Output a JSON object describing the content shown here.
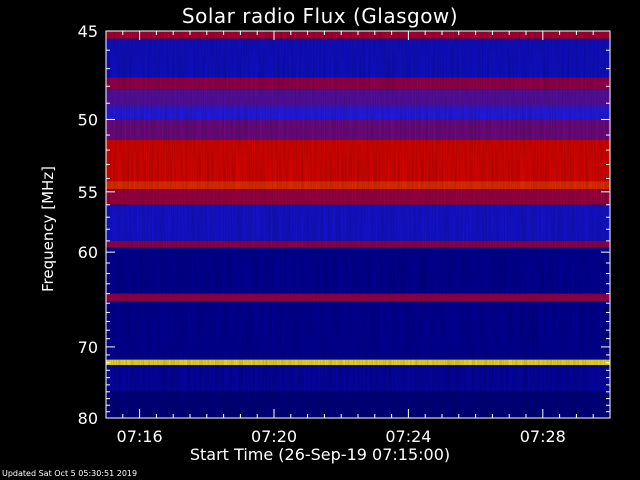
{
  "chart_data": {
    "type": "heatmap",
    "title": "Solar radio Flux (Glasgow)",
    "xlabel": "Start Time (26-Sep-19 07:15:00)",
    "ylabel": "Frequency [MHz]",
    "x_tick_labels": [
      "07:16",
      "07:20",
      "07:24",
      "07:28"
    ],
    "x_tick_minutes": [
      1,
      5,
      9,
      13
    ],
    "xlim_minutes": [
      0,
      15
    ],
    "y_ticks": [
      45,
      50,
      55,
      60,
      70,
      80
    ],
    "ylim": [
      45,
      80
    ],
    "y_scale": "reciprocal",
    "colormap": "black-blue-red-yellow-white",
    "bands": [
      {
        "freq_start": 45.0,
        "freq_end": 45.4,
        "level": 0.55
      },
      {
        "freq_start": 45.4,
        "freq_end": 47.5,
        "level": 0.28
      },
      {
        "freq_start": 47.5,
        "freq_end": 48.2,
        "level": 0.5
      },
      {
        "freq_start": 48.2,
        "freq_end": 49.2,
        "level": 0.42
      },
      {
        "freq_start": 49.2,
        "freq_end": 50.0,
        "level": 0.36
      },
      {
        "freq_start": 50.0,
        "freq_end": 51.3,
        "level": 0.45
      },
      {
        "freq_start": 51.3,
        "freq_end": 54.2,
        "level": 0.66
      },
      {
        "freq_start": 54.2,
        "freq_end": 54.8,
        "level": 0.74
      },
      {
        "freq_start": 54.8,
        "freq_end": 56.0,
        "level": 0.52
      },
      {
        "freq_start": 56.0,
        "freq_end": 59.0,
        "level": 0.3
      },
      {
        "freq_start": 59.0,
        "freq_end": 59.6,
        "level": 0.5
      },
      {
        "freq_start": 59.6,
        "freq_end": 64.0,
        "level": 0.2
      },
      {
        "freq_start": 64.0,
        "freq_end": 64.8,
        "level": 0.5
      },
      {
        "freq_start": 64.8,
        "freq_end": 71.6,
        "level": 0.2
      },
      {
        "freq_start": 71.6,
        "freq_end": 72.3,
        "level": 0.92
      },
      {
        "freq_start": 72.3,
        "freq_end": 76.0,
        "level": 0.22
      },
      {
        "freq_start": 76.0,
        "freq_end": 80.0,
        "level": 0.17
      }
    ]
  },
  "footer": {
    "updated": "Updated Sat Oct  5 05:30:51 2019"
  }
}
